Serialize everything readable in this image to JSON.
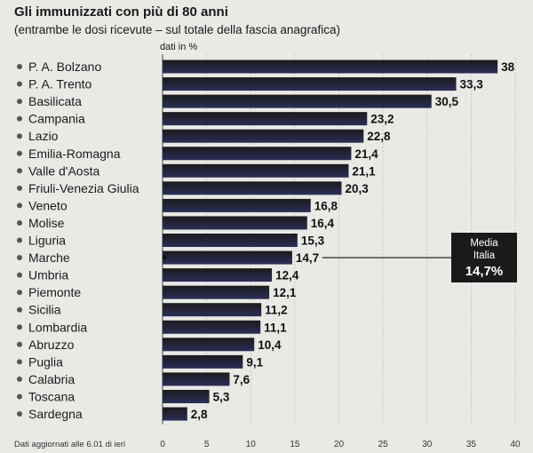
{
  "chart_data": {
    "type": "bar",
    "orientation": "horizontal",
    "title": "Gli immunizzati con più di 80 anni",
    "subtitle": "(entrambe le dosi ricevute – sul totale della fascia anagrafica)",
    "unit_label": "dati in %",
    "categories": [
      "P. A. Bolzano",
      "P. A. Trento",
      "Basilicata",
      "Campania",
      "Lazio",
      "Emilia-Romagna",
      "Valle d'Aosta",
      "Friuli-Venezia Giulia",
      "Veneto",
      "Molise",
      "Liguria",
      "Marche",
      "Umbria",
      "Piemonte",
      "Sicilia",
      "Lombardia",
      "Abruzzo",
      "Puglia",
      "Calabria",
      "Toscana",
      "Sardegna"
    ],
    "values": [
      38,
      33.3,
      30.5,
      23.2,
      22.8,
      21.4,
      21.1,
      20.3,
      16.8,
      16.4,
      15.3,
      14.7,
      12.4,
      12.1,
      11.2,
      11.1,
      10.4,
      9.1,
      7.6,
      5.3,
      2.8
    ],
    "value_labels": [
      "38",
      "33,3",
      "30,5",
      "23,2",
      "22,8",
      "21,4",
      "21,1",
      "20,3",
      "16,8",
      "16,4",
      "15,3",
      "14,7",
      "12,4",
      "12,1",
      "11,2",
      "11,1",
      "10,4",
      "9,1",
      "7,6",
      "5,3",
      "2,8"
    ],
    "xlim": [
      0,
      40
    ],
    "xticks": [
      0,
      5,
      10,
      15,
      20,
      25,
      30,
      35,
      40
    ],
    "xtick_labels": [
      "0",
      "5",
      "10",
      "15",
      "20",
      "25",
      "30",
      "35",
      "40"
    ],
    "grid": true,
    "average": {
      "label_line1": "Media",
      "label_line2": "Italia",
      "value": 14.7,
      "value_label": "14,7%"
    },
    "footnote": "Dati aggiornati alle 6.01 di ieri",
    "colors": {
      "bar_top": "#1b1b1b",
      "bar_bottom": "#2b2d57",
      "avg_box": "#1a1a1a",
      "background": "#e9e9e6"
    }
  }
}
